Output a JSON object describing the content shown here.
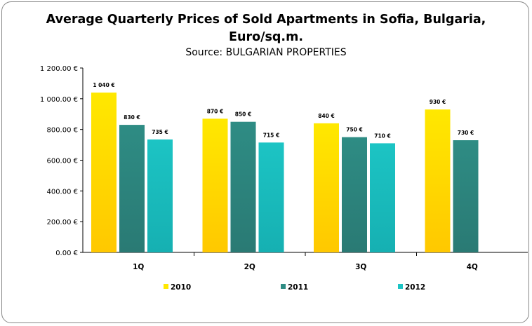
{
  "chart_data": {
    "type": "bar",
    "title": "Average Quarterly Prices of Sold Apartments in Sofia, Bulgaria, Euro/sq.m.",
    "title_lines": [
      "Average Quarterly Prices of Sold Apartments in Sofia, Bulgaria,",
      "Euro/sq.m."
    ],
    "subtitle": "Source: BULGARIAN PROPERTIES",
    "categories": [
      "1Q",
      "2Q",
      "3Q",
      "4Q"
    ],
    "series": [
      {
        "name": "2010",
        "values": [
          1040,
          870,
          840,
          930
        ],
        "labels": [
          "1 040 €",
          "870 €",
          "840 €",
          "930 €"
        ],
        "color": "#FFE800",
        "color_bottom": "#FFC800"
      },
      {
        "name": "2011",
        "values": [
          830,
          850,
          750,
          730
        ],
        "labels": [
          "830 €",
          "850 €",
          "750 €",
          "730 €"
        ],
        "color": "#2E8C84",
        "color_bottom": "#2A7A74"
      },
      {
        "name": "2012",
        "values": [
          735,
          715,
          710,
          null
        ],
        "labels": [
          "735 €",
          "715 €",
          "710 €",
          null
        ],
        "color": "#1CC4C4",
        "color_bottom": "#16B0B2"
      }
    ],
    "yticks": [
      0,
      200,
      400,
      600,
      800,
      1000,
      1200
    ],
    "ytick_labels": [
      "0.00 €",
      "200.00 €",
      "400.00 €",
      "600.00 €",
      "800.00 €",
      "1 000.00 €",
      "1 200.00 €"
    ],
    "ylim": [
      0,
      1200
    ],
    "grid": false,
    "legend_position": "bottom"
  }
}
